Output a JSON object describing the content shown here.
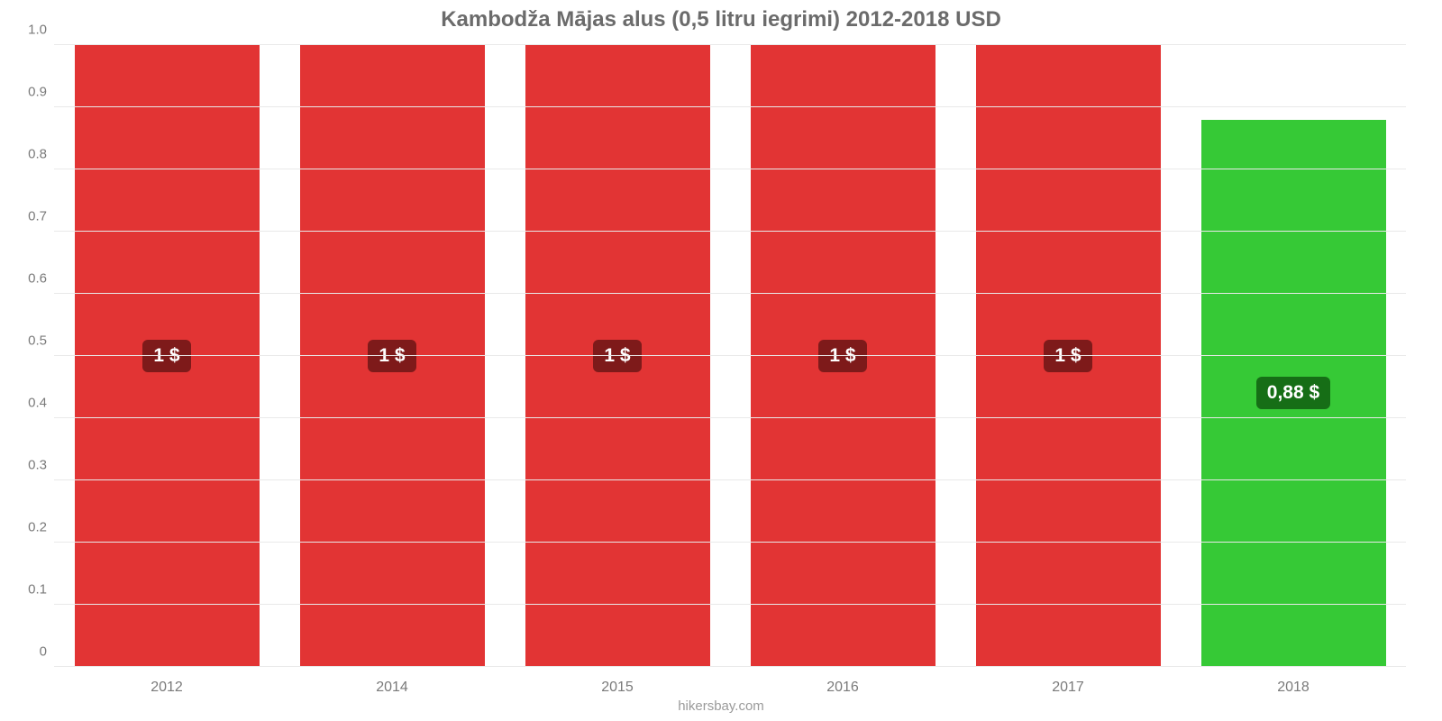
{
  "chart": {
    "type": "bar",
    "title": "Kambodža Mājas alus (0,5 litru iegrimi) 2012-2018 USD",
    "title_fontsize": 24,
    "title_color": "#6b6b6b",
    "background_color": "#ffffff",
    "source": "hikersbay.com",
    "source_fontsize": 15,
    "source_color": "#9a9a9a",
    "y": {
      "min": 0,
      "max": 1.0,
      "ticks": [
        "0",
        "0.1",
        "0.2",
        "0.3",
        "0.4",
        "0.5",
        "0.6",
        "0.7",
        "0.8",
        "0.9",
        "1.0"
      ],
      "tick_values": [
        0,
        0.1,
        0.2,
        0.3,
        0.4,
        0.5,
        0.6,
        0.7,
        0.8,
        0.9,
        1.0
      ],
      "tick_fontsize": 15,
      "tick_color": "#7a7a7a",
      "grid_color": "#e9e9e9",
      "axis_line_color": "#c9c9c9"
    },
    "x": {
      "categories": [
        "2012",
        "2014",
        "2015",
        "2016",
        "2017",
        "2018"
      ],
      "tick_fontsize": 16,
      "tick_color": "#7a7a7a",
      "axis_line_color": "#c9c9c9"
    },
    "bars": [
      {
        "value": 1.0,
        "label": "1 $",
        "color": "#e23434",
        "label_bg": "#7e1a1a"
      },
      {
        "value": 1.0,
        "label": "1 $",
        "color": "#e23434",
        "label_bg": "#7e1a1a"
      },
      {
        "value": 1.0,
        "label": "1 $",
        "color": "#e23434",
        "label_bg": "#7e1a1a"
      },
      {
        "value": 1.0,
        "label": "1 $",
        "color": "#e23434",
        "label_bg": "#7e1a1a"
      },
      {
        "value": 1.0,
        "label": "1 $",
        "color": "#e23434",
        "label_bg": "#7e1a1a"
      },
      {
        "value": 0.88,
        "label": "0,88 $",
        "color": "#36c936",
        "label_bg": "#166e16"
      }
    ],
    "bar_width_pct": 82,
    "bar_label_fontsize": 21,
    "bar_label_color": "#ffffff"
  }
}
